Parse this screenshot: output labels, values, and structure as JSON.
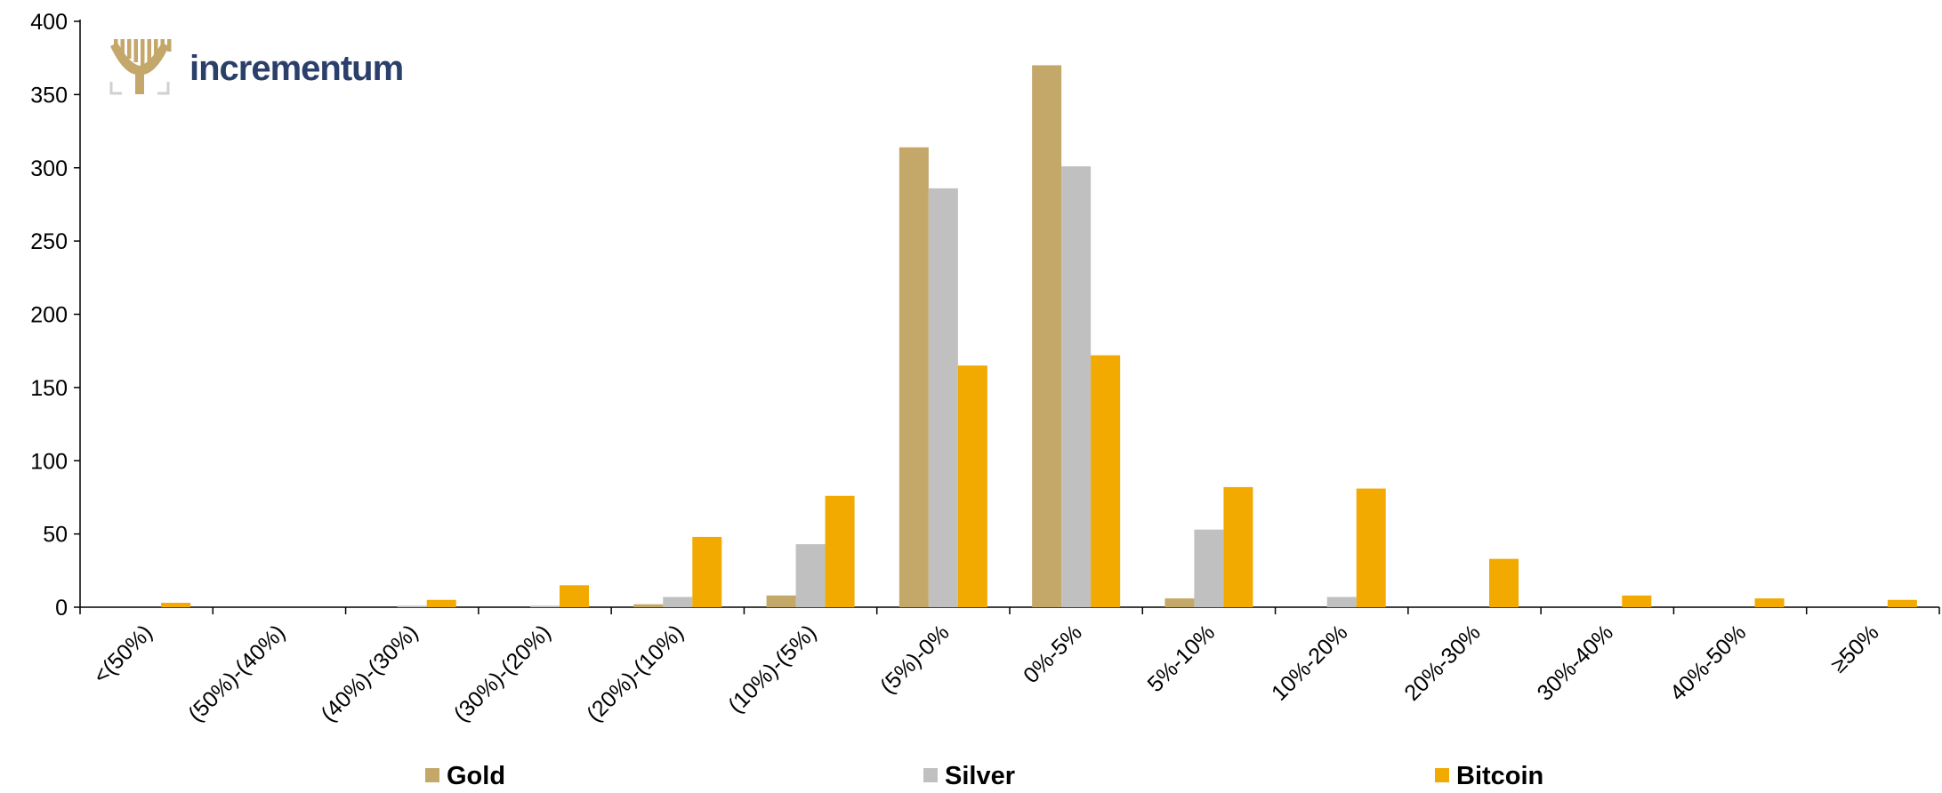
{
  "brand": {
    "name": "incrementum",
    "logo_icon": "tree-logo-icon",
    "text_color": "#2b3f6b",
    "logo_color": "#c4a76a"
  },
  "chart_data": {
    "type": "bar",
    "categories": [
      "<(50%)",
      "(50%)-(40%)",
      "(40%)-(30%)",
      "(30%)-(20%)",
      "(20%)-(10%)",
      "(10%)-(5%)",
      "(5%)-0%",
      "0%-5%",
      "5%-10%",
      "10%-20%",
      "20%-30%",
      "30%-40%",
      "40%-50%",
      "≥50%"
    ],
    "series": [
      {
        "name": "Gold",
        "color": "#c4a86a",
        "values": [
          0,
          0,
          0,
          0,
          2,
          8,
          314,
          370,
          6,
          0,
          0,
          0,
          0,
          0
        ]
      },
      {
        "name": "Silver",
        "color": "#c0c0c0",
        "values": [
          0,
          0,
          1,
          1,
          7,
          43,
          286,
          301,
          53,
          7,
          0,
          0,
          0,
          0
        ]
      },
      {
        "name": "Bitcoin",
        "color": "#f2a900",
        "values": [
          3,
          0,
          5,
          15,
          48,
          76,
          165,
          172,
          82,
          81,
          33,
          8,
          6,
          5
        ]
      }
    ],
    "yticks": [
      "0",
      "50",
      "100",
      "150",
      "200",
      "250",
      "300",
      "350",
      "400"
    ],
    "ylim": [
      0,
      400
    ],
    "grid": false,
    "legend_position": "bottom"
  }
}
